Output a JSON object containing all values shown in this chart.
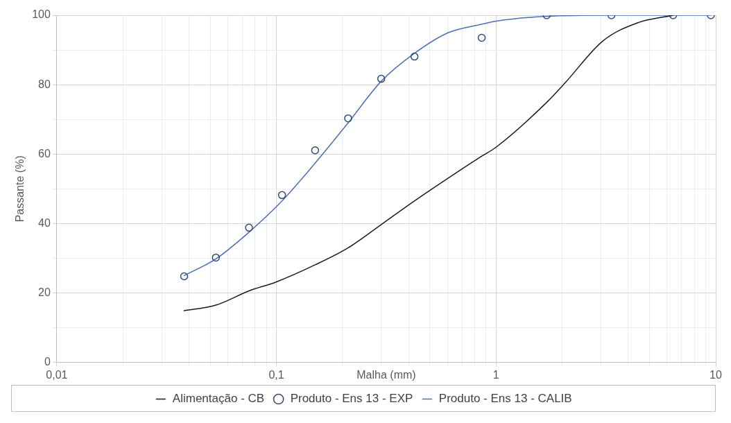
{
  "chart_data": {
    "type": "line",
    "xlabel": "Malha (mm)",
    "ylabel": "Passante (%)",
    "log": "x",
    "grid": true,
    "legend": "bottom",
    "xlim": [
      0.01,
      10
    ],
    "ylim": [
      0,
      100
    ],
    "xticks": [
      {
        "value": 0.01,
        "label": "0,01"
      },
      {
        "value": 0.02,
        "label": null
      },
      {
        "value": 0.03,
        "label": null
      },
      {
        "value": 0.04,
        "label": null
      },
      {
        "value": 0.05,
        "label": null
      },
      {
        "value": 0.06,
        "label": null
      },
      {
        "value": 0.07,
        "label": null
      },
      {
        "value": 0.08,
        "label": null
      },
      {
        "value": 0.09,
        "label": null
      },
      {
        "value": 0.1,
        "label": "0,1"
      },
      {
        "value": 0.2,
        "label": null
      },
      {
        "value": 0.3,
        "label": null
      },
      {
        "value": 0.4,
        "label": null
      },
      {
        "value": 0.5,
        "label": null
      },
      {
        "value": 0.6,
        "label": null
      },
      {
        "value": 0.7,
        "label": null
      },
      {
        "value": 0.8,
        "label": null
      },
      {
        "value": 0.9,
        "label": null
      },
      {
        "value": 1,
        "label": "1"
      },
      {
        "value": 2,
        "label": null
      },
      {
        "value": 3,
        "label": null
      },
      {
        "value": 4,
        "label": null
      },
      {
        "value": 5,
        "label": null
      },
      {
        "value": 6,
        "label": null
      },
      {
        "value": 7,
        "label": null
      },
      {
        "value": 8,
        "label": null
      },
      {
        "value": 9,
        "label": null
      },
      {
        "value": 10,
        "label": "10"
      }
    ],
    "yticks": [
      0,
      {
        "value": 10,
        "label": null
      },
      20,
      {
        "value": 30,
        "label": null
      },
      40,
      {
        "value": 50,
        "label": null
      },
      60,
      {
        "value": 70,
        "label": null
      },
      80,
      {
        "value": 90,
        "label": null
      },
      100
    ],
    "series": [
      {
        "name": "Alimentação - CB",
        "type": "line",
        "color": "#1a1a1a",
        "marker": "none",
        "x": [
          0.038,
          0.053,
          0.075,
          0.1,
          0.15,
          0.212,
          0.3,
          0.42,
          0.86,
          1.0,
          1.7,
          2.06,
          3.05,
          4.4,
          6.4
        ],
        "values": [
          14.9,
          16.5,
          20.6,
          23.2,
          28.1,
          33,
          39.7,
          46.3,
          59.4,
          62,
          74.9,
          80.5,
          92.5,
          97.8,
          100
        ]
      },
      {
        "name": "Produto - Ens 13 - EXP",
        "type": "scatter",
        "color": "#2f4b7c",
        "marker": "circle",
        "x": [
          0.038,
          0.053,
          0.075,
          0.106,
          0.15,
          0.212,
          0.3,
          0.425,
          0.86,
          1.7,
          3.35,
          6.4,
          9.5
        ],
        "values": [
          24.8,
          30.2,
          38.8,
          48.2,
          61.1,
          70.3,
          81.7,
          88.1,
          93.5,
          100,
          100,
          100,
          100
        ]
      },
      {
        "name": "Produto - Ens 13 - CALIB",
        "type": "line",
        "color": "#4a6fb5",
        "marker": "none",
        "x": [
          0.038,
          0.053,
          0.075,
          0.106,
          0.15,
          0.212,
          0.3,
          0.424,
          0.607,
          0.86,
          1.0,
          1.7,
          3.35,
          6.4,
          9.5
        ],
        "values": [
          25,
          29.8,
          37.5,
          46.5,
          57.4,
          69,
          81,
          89,
          95,
          97.4,
          98.3,
          99.7,
          100,
          100,
          100
        ]
      }
    ]
  }
}
